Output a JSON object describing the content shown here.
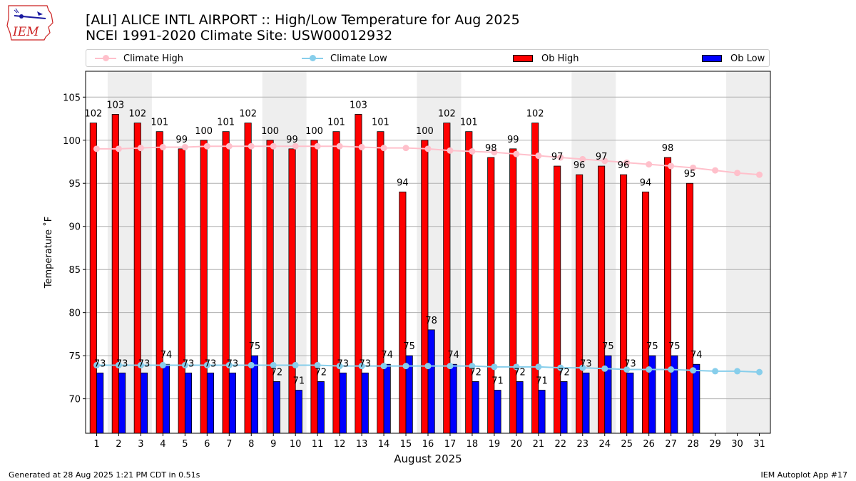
{
  "header": {
    "logo_text": "IEM",
    "title_line1": "[ALI] ALICE INTL AIRPORT :: High/Low Temperature for Aug 2025",
    "title_line2": "NCEI 1991-2020 Climate Site: USW00012932"
  },
  "legend": {
    "climate_high": "Climate High",
    "climate_low": "Climate Low",
    "ob_high": "Ob High",
    "ob_low": "Ob Low"
  },
  "footer": {
    "generated": "Generated at 28 Aug 2025 1:21 PM CDT in 0.51s",
    "app": "IEM Autoplot App #17"
  },
  "colors": {
    "ob_high": "#ff0000",
    "ob_low": "#0000ff",
    "climate_high": "#ffc0cb",
    "climate_low": "#87ceeb",
    "weekend_shade": "#eeeeee",
    "grid": "#b0b0b0"
  },
  "chart_data": {
    "type": "bar",
    "xlabel": "August 2025",
    "ylabel": "Temperature ˚F",
    "ylim": [
      66,
      108
    ],
    "xlim": [
      0.5,
      31.5
    ],
    "yticks": [
      70,
      75,
      80,
      85,
      90,
      95,
      100,
      105
    ],
    "grid": "horizontal",
    "legend_position": "top",
    "categories": [
      "1",
      "2",
      "3",
      "4",
      "5",
      "6",
      "7",
      "8",
      "9",
      "10",
      "11",
      "12",
      "13",
      "14",
      "15",
      "16",
      "17",
      "18",
      "19",
      "20",
      "21",
      "22",
      "23",
      "24",
      "25",
      "26",
      "27",
      "28",
      "29",
      "30",
      "31"
    ],
    "weekend_shading": [
      [
        1.5,
        3.5
      ],
      [
        8.5,
        10.5
      ],
      [
        15.5,
        17.5
      ],
      [
        22.5,
        24.5
      ],
      [
        29.5,
        31.5
      ]
    ],
    "series": [
      {
        "name": "Ob High",
        "kind": "bar",
        "values": [
          102,
          103,
          102,
          101,
          99,
          100,
          101,
          102,
          100,
          99,
          100,
          101,
          103,
          101,
          94,
          100,
          102,
          101,
          98,
          99,
          102,
          97,
          96,
          97,
          96,
          94,
          98,
          95,
          null,
          null,
          null
        ]
      },
      {
        "name": "Ob Low",
        "kind": "bar",
        "values": [
          73,
          73,
          73,
          74,
          73,
          73,
          73,
          75,
          72,
          71,
          72,
          73,
          73,
          74,
          75,
          78,
          74,
          72,
          71,
          72,
          71,
          72,
          73,
          75,
          73,
          75,
          75,
          74,
          null,
          null,
          null
        ]
      },
      {
        "name": "Climate High",
        "kind": "line",
        "values": [
          99.0,
          99.0,
          99.1,
          99.2,
          99.2,
          99.3,
          99.3,
          99.3,
          99.3,
          99.3,
          99.3,
          99.3,
          99.2,
          99.1,
          99.1,
          99.0,
          98.8,
          98.7,
          98.6,
          98.4,
          98.2,
          98.0,
          97.8,
          97.6,
          97.4,
          97.2,
          97.0,
          96.8,
          96.5,
          96.2,
          96.0
        ]
      },
      {
        "name": "Climate Low",
        "kind": "line",
        "values": [
          73.9,
          73.9,
          73.9,
          73.9,
          73.9,
          73.9,
          73.9,
          73.9,
          73.9,
          73.9,
          73.9,
          73.8,
          73.8,
          73.8,
          73.8,
          73.8,
          73.8,
          73.8,
          73.7,
          73.7,
          73.7,
          73.6,
          73.6,
          73.5,
          73.4,
          73.4,
          73.4,
          73.3,
          73.2,
          73.2,
          73.1
        ]
      }
    ]
  }
}
